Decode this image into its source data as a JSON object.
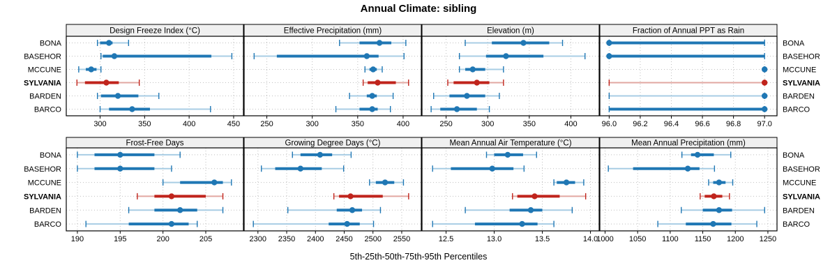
{
  "title": "Annual Climate: sibling",
  "caption": "5th-25th-50th-75th-95th Percentiles",
  "stations": [
    {
      "name": "BONA",
      "highlight": false
    },
    {
      "name": "BASEHOR",
      "highlight": false
    },
    {
      "name": "MCCUNE",
      "highlight": false
    },
    {
      "name": "SYLVANIA",
      "highlight": true
    },
    {
      "name": "BARDEN",
      "highlight": false
    },
    {
      "name": "BARCO",
      "highlight": false
    }
  ],
  "colors": {
    "normal": "#1f77b4",
    "normal_light": "#a8cde4",
    "highlight": "#c0241c",
    "highlight_light": "#e2a7a1",
    "header_bg": "#f0f0f0",
    "panel_border": "#000000",
    "grid": "#bfbfbf",
    "text": "#000000"
  },
  "percentile_order": [
    "p5",
    "p25",
    "p50",
    "p75",
    "p95"
  ],
  "chart_data": [
    {
      "type": "dotplot",
      "row": 0,
      "col": 0,
      "title": "Design Freeze Index (°C)",
      "xlim": [
        262,
        461
      ],
      "ticks": [
        300,
        350,
        400,
        450
      ],
      "tick_labels": [
        "300",
        "350",
        "400",
        "450"
      ],
      "series": [
        {
          "name": "BONA",
          "values": [
            297,
            300,
            310,
            314,
            332
          ]
        },
        {
          "name": "BASEHOR",
          "values": [
            301,
            303,
            316,
            425,
            448
          ]
        },
        {
          "name": "MCCUNE",
          "values": [
            276,
            284,
            290,
            296,
            301
          ]
        },
        {
          "name": "SYLVANIA",
          "values": [
            274,
            283,
            307,
            321,
            344
          ]
        },
        {
          "name": "BARDEN",
          "values": [
            297,
            301,
            320,
            343,
            366
          ]
        },
        {
          "name": "BARCO",
          "values": [
            300,
            310,
            336,
            356,
            424
          ]
        }
      ]
    },
    {
      "type": "dotplot",
      "row": 0,
      "col": 1,
      "title": "Effective Precipitation (mm)",
      "xlim": [
        225,
        420
      ],
      "ticks": [
        250,
        300,
        350,
        400
      ],
      "tick_labels": [
        "250",
        "300",
        "350",
        "400"
      ],
      "series": [
        {
          "name": "BONA",
          "values": [
            330,
            352,
            374,
            387,
            403
          ]
        },
        {
          "name": "BASEHOR",
          "values": [
            236,
            261,
            360,
            373,
            401
          ]
        },
        {
          "name": "MCCUNE",
          "values": [
            358,
            363,
            367,
            371,
            377
          ]
        },
        {
          "name": "SYLVANIA",
          "values": [
            356,
            361,
            372,
            392,
            406
          ]
        },
        {
          "name": "BARDEN",
          "values": [
            341,
            360,
            366,
            371,
            389
          ]
        },
        {
          "name": "BARCO",
          "values": [
            326,
            352,
            366,
            372,
            386
          ]
        }
      ]
    },
    {
      "type": "dotplot",
      "row": 0,
      "col": 2,
      "title": "Elevation (m)",
      "xlim": [
        221,
        434
      ],
      "ticks": [
        250,
        300,
        350,
        400
      ],
      "tick_labels": [
        "250",
        "300",
        "350",
        "400"
      ],
      "series": [
        {
          "name": "BONA",
          "values": [
            273,
            305,
            343,
            374,
            390
          ]
        },
        {
          "name": "BASEHOR",
          "values": [
            266,
            298,
            322,
            367,
            417
          ]
        },
        {
          "name": "MCCUNE",
          "values": [
            266,
            273,
            282,
            297,
            319
          ]
        },
        {
          "name": "SYLVANIA",
          "values": [
            252,
            259,
            287,
            302,
            319
          ]
        },
        {
          "name": "BARDEN",
          "values": [
            235,
            254,
            275,
            297,
            314
          ]
        },
        {
          "name": "BARCO",
          "values": [
            232,
            243,
            263,
            287,
            302
          ]
        }
      ]
    },
    {
      "type": "dotplot",
      "row": 0,
      "col": 3,
      "title": "Fraction of Annual PPT as Rain",
      "xlim": [
        95.94,
        97.08
      ],
      "ticks": [
        96.0,
        96.2,
        96.4,
        96.6,
        96.8,
        97.0
      ],
      "tick_labels": [
        "96.0",
        "96.2",
        "96.4",
        "96.6",
        "96.8",
        "97.0"
      ],
      "series": [
        {
          "name": "BONA",
          "values": [
            96.0,
            96.0,
            96.0,
            97.0,
            97.0
          ]
        },
        {
          "name": "BASEHOR",
          "values": [
            96.0,
            96.0,
            96.0,
            97.0,
            97.0
          ]
        },
        {
          "name": "MCCUNE",
          "values": [
            97.0,
            97.0,
            97.0,
            97.0,
            97.0
          ]
        },
        {
          "name": "SYLVANIA",
          "values": [
            96.0,
            97.0,
            97.0,
            97.0,
            97.0
          ]
        },
        {
          "name": "BARDEN",
          "values": [
            96.0,
            97.0,
            97.0,
            97.0,
            97.0
          ]
        },
        {
          "name": "BARCO",
          "values": [
            96.0,
            96.0,
            97.0,
            97.0,
            97.0
          ]
        }
      ]
    },
    {
      "type": "dotplot",
      "row": 1,
      "col": 0,
      "title": "Frost-Free Days",
      "xlim": [
        188.7,
        209.4
      ],
      "ticks": [
        190,
        195,
        200,
        205
      ],
      "tick_labels": [
        "190",
        "195",
        "200",
        "205"
      ],
      "series": [
        {
          "name": "BONA",
          "values": [
            190,
            192,
            195,
            199,
            202
          ]
        },
        {
          "name": "BASEHOR",
          "values": [
            190,
            192,
            195,
            199,
            201
          ]
        },
        {
          "name": "MCCUNE",
          "values": [
            200,
            202,
            206,
            207,
            208
          ]
        },
        {
          "name": "SYLVANIA",
          "values": [
            197,
            199,
            201,
            205,
            207
          ]
        },
        {
          "name": "BARDEN",
          "values": [
            196,
            199,
            202,
            204,
            207
          ]
        },
        {
          "name": "BARCO",
          "values": [
            191,
            196,
            201,
            203,
            204
          ]
        }
      ]
    },
    {
      "type": "dotplot",
      "row": 1,
      "col": 1,
      "title": "Growing Degree Days (°C)",
      "xlim": [
        2276,
        2584
      ],
      "ticks": [
        2300,
        2350,
        2400,
        2450,
        2500,
        2550
      ],
      "tick_labels": [
        "2300",
        "2350",
        "2400",
        "2450",
        "2500",
        "2550"
      ],
      "series": [
        {
          "name": "BONA",
          "values": [
            2360,
            2374,
            2408,
            2429,
            2462
          ]
        },
        {
          "name": "BASEHOR",
          "values": [
            2306,
            2330,
            2374,
            2411,
            2449
          ]
        },
        {
          "name": "MCCUNE",
          "values": [
            2494,
            2505,
            2521,
            2537,
            2553
          ]
        },
        {
          "name": "SYLVANIA",
          "values": [
            2432,
            2441,
            2461,
            2517,
            2562
          ]
        },
        {
          "name": "BARDEN",
          "values": [
            2352,
            2437,
            2464,
            2481,
            2513
          ]
        },
        {
          "name": "BARCO",
          "values": [
            2292,
            2423,
            2455,
            2477,
            2501
          ]
        }
      ]
    },
    {
      "type": "dotplot",
      "row": 1,
      "col": 2,
      "title": "Mean Annual Air Temperature (°C)",
      "xlim": [
        12.25,
        14.09
      ],
      "ticks": [
        12.5,
        13.0,
        13.5,
        14.0
      ],
      "tick_labels": [
        "12.5",
        "13.0",
        "13.5",
        "14.0"
      ],
      "series": [
        {
          "name": "BONA",
          "values": [
            12.92,
            13.0,
            13.14,
            13.3,
            13.44
          ]
        },
        {
          "name": "BASEHOR",
          "values": [
            12.36,
            12.55,
            12.98,
            13.2,
            13.31
          ]
        },
        {
          "name": "MCCUNE",
          "values": [
            13.62,
            13.65,
            13.75,
            13.84,
            13.93
          ]
        },
        {
          "name": "SYLVANIA",
          "values": [
            13.19,
            13.24,
            13.42,
            13.68,
            13.95
          ]
        },
        {
          "name": "BARDEN",
          "values": [
            12.7,
            13.16,
            13.38,
            13.5,
            13.81
          ]
        },
        {
          "name": "BARCO",
          "values": [
            12.36,
            12.8,
            13.29,
            13.45,
            13.62
          ]
        }
      ]
    },
    {
      "type": "dotplot",
      "row": 1,
      "col": 3,
      "title": "Mean Annual Precipitation (mm)",
      "xlim": [
        992,
        1264
      ],
      "ticks": [
        1000,
        1050,
        1100,
        1150,
        1200,
        1250
      ],
      "tick_labels": [
        "1000",
        "1050",
        "1100",
        "1150",
        "1200",
        "1250"
      ],
      "series": [
        {
          "name": "BONA",
          "values": [
            1118,
            1132,
            1142,
            1167,
            1193
          ]
        },
        {
          "name": "BASEHOR",
          "values": [
            1005,
            1043,
            1127,
            1145,
            1168
          ]
        },
        {
          "name": "MCCUNE",
          "values": [
            1159,
            1166,
            1175,
            1185,
            1196
          ]
        },
        {
          "name": "SYLVANIA",
          "values": [
            1146,
            1153,
            1167,
            1180,
            1191
          ]
        },
        {
          "name": "BARDEN",
          "values": [
            1117,
            1150,
            1175,
            1195,
            1245
          ]
        },
        {
          "name": "BARCO",
          "values": [
            1081,
            1124,
            1166,
            1194,
            1233
          ]
        }
      ]
    }
  ]
}
